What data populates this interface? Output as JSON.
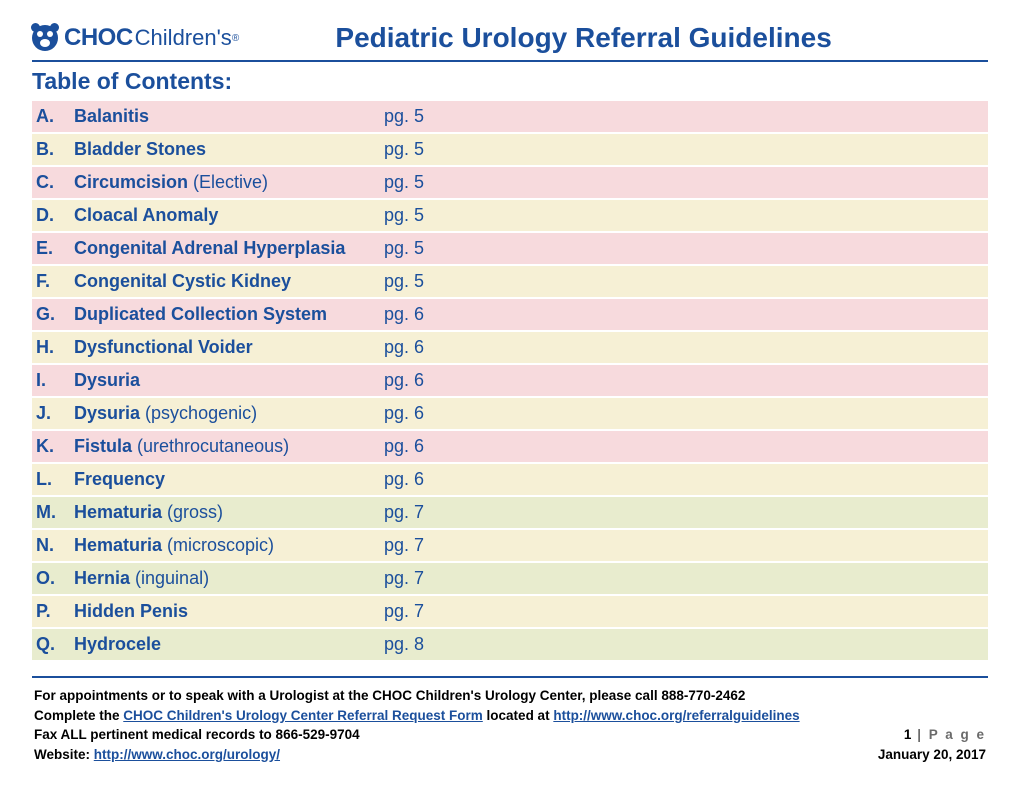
{
  "logo": {
    "choc": "CHOC",
    "childrens": "Children's",
    "dot": "®"
  },
  "doc_title": "Pediatric Urology Referral Guidelines",
  "toc_heading": "Table of Contents:",
  "row_colors": {
    "pink": "#f7dadd",
    "cream": "#f6f0d5",
    "green": "#e8ecce"
  },
  "toc": [
    {
      "letter": "A.",
      "topic": "Balanitis",
      "sub": "",
      "page": "pg. 5",
      "band": "pink"
    },
    {
      "letter": "B.",
      "topic": "Bladder Stones",
      "sub": "",
      "page": "pg. 5",
      "band": "cream"
    },
    {
      "letter": "C.",
      "topic": "Circumcision",
      "sub": " (Elective)",
      "page": "pg. 5",
      "band": "pink"
    },
    {
      "letter": "D.",
      "topic": "Cloacal Anomaly",
      "sub": "",
      "page": "pg. 5",
      "band": "cream"
    },
    {
      "letter": "E.",
      "topic": "Congenital Adrenal Hyperplasia",
      "sub": "",
      "page": "pg. 5",
      "band": "pink"
    },
    {
      "letter": "F.",
      "topic": "Congenital Cystic Kidney",
      "sub": "",
      "page": "pg. 5",
      "band": "cream"
    },
    {
      "letter": "G.",
      "topic": "Duplicated Collection System",
      "sub": "",
      "page": "pg. 6",
      "band": "pink"
    },
    {
      "letter": "H.",
      "topic": "Dysfunctional Voider",
      "sub": "",
      "page": "pg. 6",
      "band": "cream"
    },
    {
      "letter": "I.",
      "topic": "Dysuria",
      "sub": "",
      "page": "pg. 6",
      "band": "pink"
    },
    {
      "letter": "J.",
      "topic": "Dysuria",
      "sub": " (psychogenic)",
      "page": "pg. 6",
      "band": "cream"
    },
    {
      "letter": "K.",
      "topic": "Fistula",
      "sub": " (urethrocutaneous)",
      "page": "pg. 6",
      "band": "pink"
    },
    {
      "letter": "L.",
      "topic": "Frequency",
      "sub": "",
      "page": "pg. 6",
      "band": "cream"
    },
    {
      "letter": "M.",
      "topic": "Hematuria",
      "sub": " (gross)",
      "page": "pg. 7",
      "band": "green"
    },
    {
      "letter": "N.",
      "topic": "Hematuria",
      "sub": " (microscopic)",
      "page": "pg. 7",
      "band": "cream"
    },
    {
      "letter": "O.",
      "topic": "Hernia",
      "sub": " (inguinal)",
      "page": "pg. 7",
      "band": "green"
    },
    {
      "letter": "P.",
      "topic": "Hidden Penis",
      "sub": "",
      "page": "pg. 7",
      "band": "cream"
    },
    {
      "letter": "Q.",
      "topic": "Hydrocele",
      "sub": "",
      "page": "pg. 8",
      "band": "green"
    }
  ],
  "footer": {
    "line1": "For appointments or to speak with a Urologist at the CHOC Children's Urology Center, please call 888-770-2462",
    "line2_pre": "Complete the ",
    "line2_link1": "CHOC Children's Urology Center Referral Request Form",
    "line2_mid": " located at ",
    "line2_link2": "http://www.choc.org/referralguidelines",
    "line3": "Fax ALL pertinent medical records to 866-529-9704",
    "page_num": "1",
    "page_word": " | P a g e",
    "line4_pre": "Website: ",
    "line4_link": " http://www.choc.org/urology/",
    "date": "January 20, 2017"
  }
}
